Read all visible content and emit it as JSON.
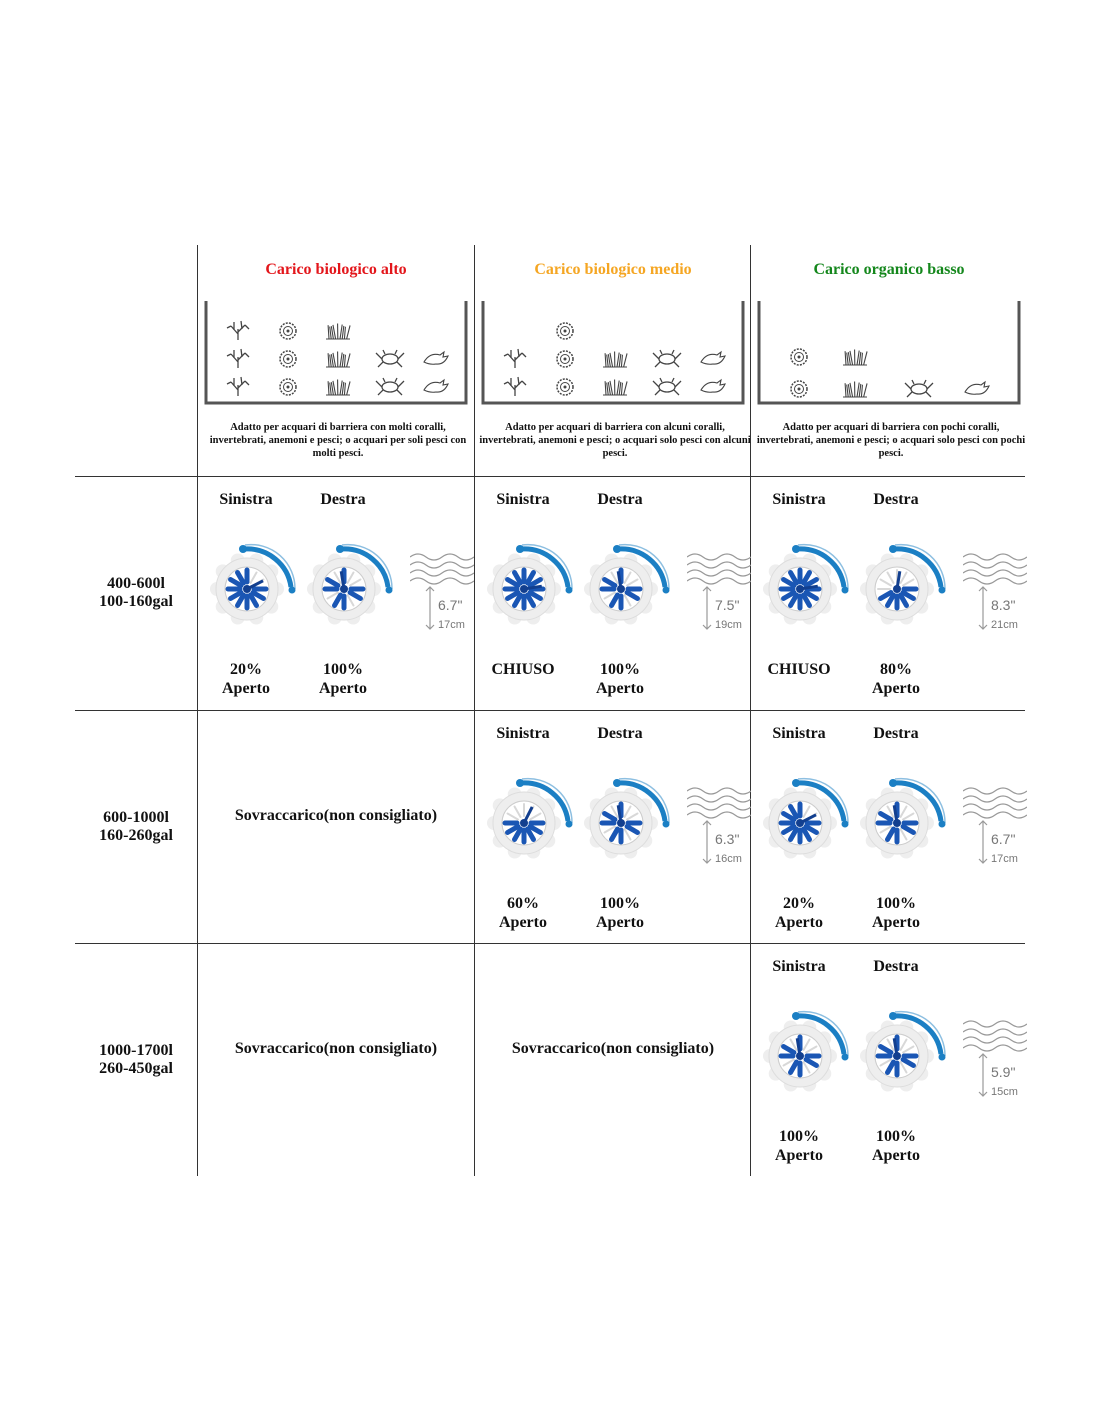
{
  "colors": {
    "high": "#e3161b",
    "medium": "#f5a623",
    "low": "#14871c",
    "valve_blue": "#1a56b4",
    "arc_blue": "#1b7fc4"
  },
  "headers": [
    {
      "title": "Carico biologico alto",
      "color": "#e3161b",
      "description": "Adatto per acquari di barriera con molti coralli, invertebrati, anemoni e pesci; o acquari per soli pesci con molti pesci.",
      "tank": {
        "coral": 3,
        "anemone": 3,
        "reef": 3,
        "crab": 2,
        "fish": 2
      }
    },
    {
      "title": "Carico biologico medio",
      "color": "#f5a623",
      "description": "Adatto per acquari di barriera con alcuni coralli, invertebrati, anemoni e pesci; o acquari solo pesci con alcuni pesci.",
      "tank": {
        "coral": 2,
        "anemone": 3,
        "reef": 2,
        "crab": 2,
        "fish": 2
      }
    },
    {
      "title": "Carico organico basso",
      "color": "#14871c",
      "description": "Adatto per acquari di barriera con pochi coralli, invertebrati, anemoni e pesci; o acquari solo pesci con pochi pesci.",
      "tank": {
        "anemone": 2,
        "reef": 2,
        "crab": 1,
        "fish": 1
      }
    }
  ],
  "rows": [
    {
      "label1": "400-600l",
      "label2": "100-160gal",
      "cells": [
        {
          "left_title": "Sinistra",
          "right_title": "Destra",
          "left": {
            "open": 20,
            "l1": "20%",
            "l2": "Aperto"
          },
          "right": {
            "open": 100,
            "l1": "100%",
            "l2": "Aperto"
          },
          "depth_in": "6.7\"",
          "depth_cm": "17cm"
        },
        {
          "left_title": "Sinistra",
          "right_title": "Destra",
          "left": {
            "open": 0,
            "l1": "CHIUSO",
            "l2": ""
          },
          "right": {
            "open": 100,
            "l1": "100%",
            "l2": "Aperto"
          },
          "depth_in": "7.5\"",
          "depth_cm": "19cm"
        },
        {
          "left_title": "Sinistra",
          "right_title": "Destra",
          "left": {
            "open": 0,
            "l1": "CHIUSO",
            "l2": ""
          },
          "right": {
            "open": 80,
            "l1": "80%",
            "l2": "Aperto"
          },
          "depth_in": "8.3\"",
          "depth_cm": "21cm"
        }
      ]
    },
    {
      "label1": "600-1000l",
      "label2": "160-260gal",
      "cells": [
        {
          "text": "Sovraccarico(non consigliato)"
        },
        {
          "left_title": "Sinistra",
          "right_title": "Destra",
          "left": {
            "open": 60,
            "l1": "60%",
            "l2": "Aperto"
          },
          "right": {
            "open": 100,
            "l1": "100%",
            "l2": "Aperto"
          },
          "depth_in": "6.3\"",
          "depth_cm": "16cm"
        },
        {
          "left_title": "Sinistra",
          "right_title": "Destra",
          "left": {
            "open": 20,
            "l1": "20%",
            "l2": "Aperto"
          },
          "right": {
            "open": 100,
            "l1": "100%",
            "l2": "Aperto"
          },
          "depth_in": "6.7\"",
          "depth_cm": "17cm"
        }
      ]
    },
    {
      "label1": "1000-1700l",
      "label2": "260-450gal",
      "cells": [
        {
          "text": "Sovraccarico(non consigliato)"
        },
        {
          "text": "Sovraccarico(non consigliato)"
        },
        {
          "left_title": "Sinistra",
          "right_title": "Destra",
          "left": {
            "open": 100,
            "l1": "100%",
            "l2": "Aperto"
          },
          "right": {
            "open": 100,
            "l1": "100%",
            "l2": "Aperto"
          },
          "depth_in": "5.9\"",
          "depth_cm": "15cm"
        }
      ]
    }
  ]
}
